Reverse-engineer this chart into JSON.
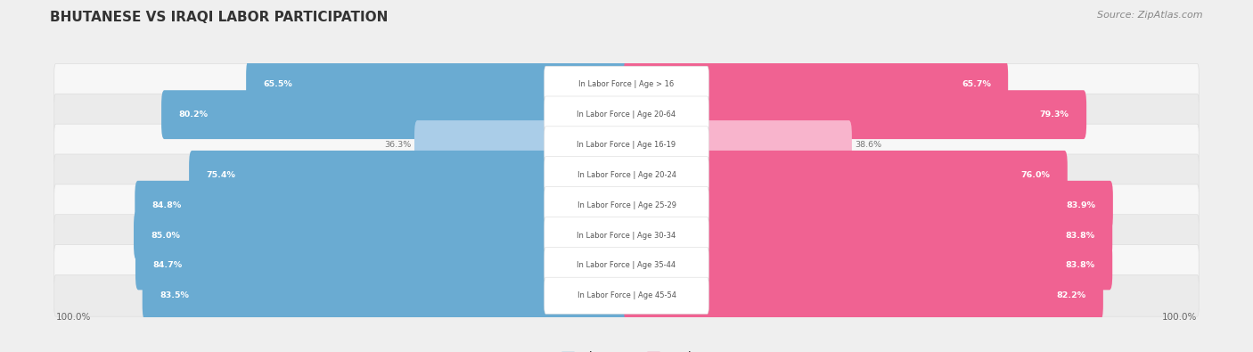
{
  "title": "BHUTANESE VS IRAQI LABOR PARTICIPATION",
  "source": "Source: ZipAtlas.com",
  "categories": [
    "In Labor Force | Age > 16",
    "In Labor Force | Age 20-64",
    "In Labor Force | Age 16-19",
    "In Labor Force | Age 20-24",
    "In Labor Force | Age 25-29",
    "In Labor Force | Age 30-34",
    "In Labor Force | Age 35-44",
    "In Labor Force | Age 45-54"
  ],
  "bhutanese": [
    65.5,
    80.2,
    36.3,
    75.4,
    84.8,
    85.0,
    84.7,
    83.5
  ],
  "iraqi": [
    65.7,
    79.3,
    38.6,
    76.0,
    83.9,
    83.8,
    83.8,
    82.2
  ],
  "blue_color": "#6AABD2",
  "blue_color_light": "#AACDE8",
  "pink_color": "#F06292",
  "pink_color_light": "#F8B4CC",
  "bg_color": "#EFEFEF",
  "row_bg_even": "#F7F7F7",
  "row_bg_odd": "#EBEBEB",
  "row_outline": "#DDDDDD",
  "label_color": "#666666",
  "title_color": "#333333",
  "source_color": "#888888",
  "legend_blue": "Bhutanese",
  "legend_pink": "Iraqi",
  "center_label_color": "#555555",
  "inside_label_color": "#FFFFFF",
  "outside_label_color": "#777777",
  "low_threshold": 45
}
